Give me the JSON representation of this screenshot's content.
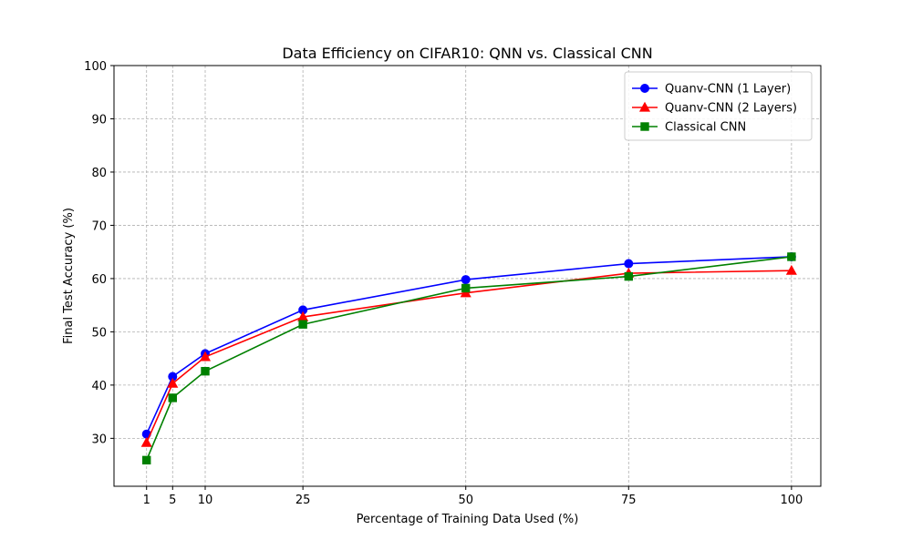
{
  "chart_data": {
    "type": "line",
    "title": "Data Efficiency on CIFAR10: QNN vs. Classical CNN",
    "xlabel": "Percentage of Training Data Used (%)",
    "ylabel": "Final Test Accuracy (%)",
    "x": [
      1,
      5,
      10,
      25,
      50,
      75,
      100
    ],
    "xticks": [
      "1",
      "5",
      "10",
      "25",
      "50",
      "75",
      "100"
    ],
    "yticks": [
      "30",
      "40",
      "50",
      "60",
      "70",
      "80",
      "90",
      "100"
    ],
    "xlim": [
      -4,
      104.5
    ],
    "ylim": [
      21,
      100
    ],
    "grid": true,
    "legend_position": "top-right",
    "series": [
      {
        "name": "Quanv-CNN (1 Layer)",
        "color": "#0000ff",
        "marker": "circle",
        "values": [
          30.8,
          41.6,
          45.9,
          54.1,
          59.8,
          62.8,
          64.1
        ]
      },
      {
        "name": "Quanv-CNN (2 Layers)",
        "color": "#ff0000",
        "marker": "triangle",
        "values": [
          29.2,
          40.3,
          45.3,
          52.8,
          57.3,
          61.0,
          61.5
        ]
      },
      {
        "name": "Classical CNN",
        "color": "#008000",
        "marker": "square",
        "values": [
          25.9,
          37.6,
          42.6,
          51.4,
          58.2,
          60.4,
          64.1
        ]
      }
    ]
  }
}
